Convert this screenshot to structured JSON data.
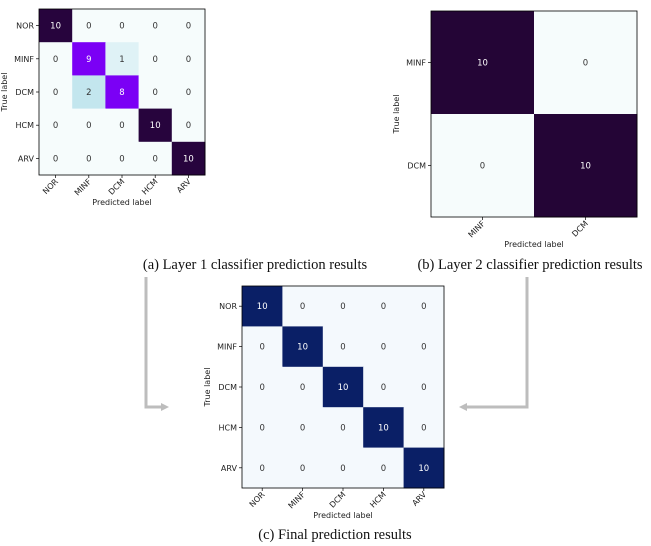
{
  "figure": {
    "arrow_color": "#bdbdbd"
  },
  "chart_data": [
    {
      "id": "a",
      "type": "heatmap",
      "title": "",
      "caption": "(a) Layer 1 classifier prediction results",
      "xlabel": "Predicted label",
      "ylabel": "True label",
      "row_labels": [
        "NOR",
        "MINF",
        "DCM",
        "HCM",
        "ARV"
      ],
      "col_labels": [
        "NOR",
        "MINF",
        "DCM",
        "HCM",
        "ARV"
      ],
      "values": [
        [
          10,
          0,
          0,
          0,
          0
        ],
        [
          0,
          9,
          1,
          0,
          0
        ],
        [
          0,
          2,
          8,
          0,
          0
        ],
        [
          0,
          0,
          0,
          10,
          0
        ],
        [
          0,
          0,
          0,
          0,
          10
        ]
      ],
      "vmax": 10,
      "colormap": {
        "low": "#f6fcfc",
        "mid": "#c3e6ee",
        "high": "#7b00f5",
        "max": "#27043d"
      }
    },
    {
      "id": "b",
      "type": "heatmap",
      "title": "",
      "caption": "(b) Layer 2 classifier prediction results",
      "xlabel": "Predicted label",
      "ylabel": "True label",
      "row_labels": [
        "MINF",
        "DCM"
      ],
      "col_labels": [
        "MINF",
        "DCM"
      ],
      "values": [
        [
          10,
          0
        ],
        [
          0,
          10
        ]
      ],
      "vmax": 10,
      "colormap": {
        "low": "#f6fcfc",
        "max": "#240536"
      }
    },
    {
      "id": "c",
      "type": "heatmap",
      "title": "",
      "caption": "(c) Final prediction results",
      "xlabel": "Predicted label",
      "ylabel": "True label",
      "row_labels": [
        "NOR",
        "MINF",
        "DCM",
        "HCM",
        "ARV"
      ],
      "col_labels": [
        "NOR",
        "MINF",
        "DCM",
        "HCM",
        "ARV"
      ],
      "values": [
        [
          10,
          0,
          0,
          0,
          0
        ],
        [
          0,
          10,
          0,
          0,
          0
        ],
        [
          0,
          0,
          10,
          0,
          0
        ],
        [
          0,
          0,
          0,
          10,
          0
        ],
        [
          0,
          0,
          0,
          0,
          10
        ]
      ],
      "vmax": 10,
      "colormap": {
        "low": "#f4f9fd",
        "max": "#0a1f66"
      }
    }
  ]
}
